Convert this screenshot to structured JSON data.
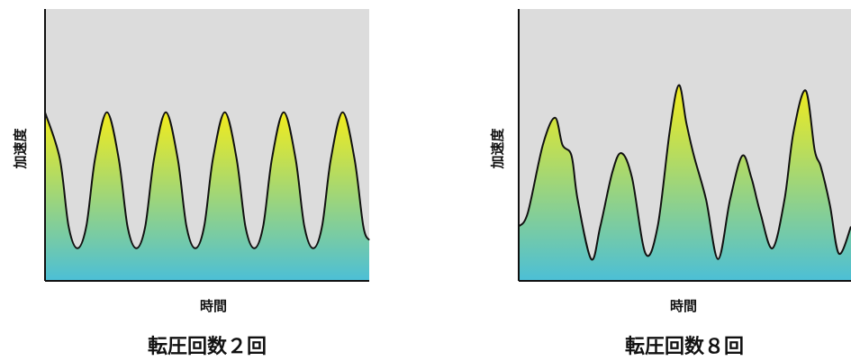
{
  "chart_data": [
    {
      "type": "line",
      "title": "転圧回数２回",
      "xlabel": "時間",
      "ylabel": "加速度",
      "grid": false,
      "legend": "none",
      "fill": "gradient",
      "colors": {
        "background": "#dcdcdc",
        "top": "#f2ec1c",
        "bottom": "#4cbfd6",
        "line": "#111111"
      },
      "ylim": [
        0,
        1
      ],
      "series": [
        {
          "x": [
            0,
            0.5,
            0.8,
            1.1,
            1.4,
            1.7,
            2.1,
            2.5,
            2.8,
            3.1,
            3.4,
            3.7,
            4.1,
            4.5,
            4.8,
            5.1,
            5.4,
            5.7,
            6.1,
            6.5,
            6.8,
            7.1,
            7.4,
            7.7,
            8.1,
            8.5,
            8.8,
            9.1,
            9.4,
            9.7,
            10.1,
            10.5,
            10.8,
            11
          ],
          "y": [
            0.62,
            0.45,
            0.2,
            0.12,
            0.2,
            0.45,
            0.62,
            0.45,
            0.2,
            0.12,
            0.2,
            0.45,
            0.62,
            0.45,
            0.2,
            0.12,
            0.2,
            0.45,
            0.62,
            0.45,
            0.2,
            0.12,
            0.2,
            0.45,
            0.62,
            0.45,
            0.2,
            0.12,
            0.2,
            0.45,
            0.62,
            0.45,
            0.2,
            0.15
          ]
        }
      ]
    },
    {
      "type": "line",
      "title": "転圧回数８回",
      "xlabel": "時間",
      "ylabel": "加速度",
      "grid": false,
      "legend": "none",
      "fill": "gradient",
      "colors": {
        "background": "#dcdcdc",
        "top": "#f2ec1c",
        "bottom": "#4cbfd6",
        "line": "#111111"
      },
      "ylim": [
        0,
        1
      ],
      "series": [
        {
          "x": [
            0,
            0.3,
            0.8,
            1.2,
            1.45,
            1.75,
            1.95,
            2.4,
            2.7,
            3.1,
            3.4,
            3.75,
            4.2,
            4.6,
            5.0,
            5.3,
            5.55,
            5.8,
            6.2,
            6.6,
            7.0,
            7.4,
            7.7,
            8.0,
            8.4,
            8.8,
            9.1,
            9.5,
            9.8,
            10.0,
            10.3,
            10.6,
            11
          ],
          "y": [
            0.2,
            0.25,
            0.5,
            0.6,
            0.5,
            0.46,
            0.3,
            0.08,
            0.2,
            0.4,
            0.47,
            0.38,
            0.1,
            0.2,
            0.55,
            0.72,
            0.58,
            0.46,
            0.3,
            0.08,
            0.3,
            0.46,
            0.38,
            0.25,
            0.12,
            0.3,
            0.55,
            0.7,
            0.48,
            0.42,
            0.28,
            0.1,
            0.2
          ]
        }
      ]
    }
  ]
}
